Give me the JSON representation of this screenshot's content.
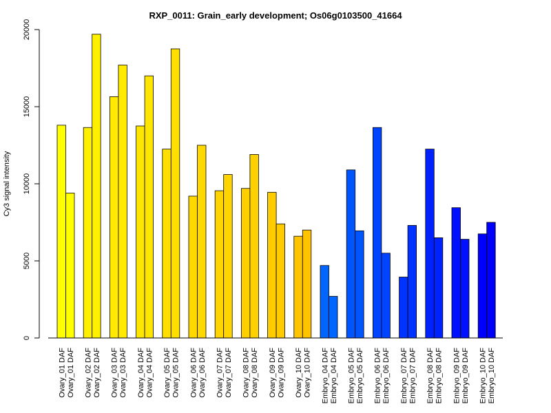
{
  "chart_data": {
    "type": "bar",
    "title": "RXP_0011: Grain_early development; Os06g0103500_41664",
    "xlabel": "",
    "ylabel": "Cy3 signal intensity",
    "ylim": [
      0,
      20000
    ],
    "yticks": [
      0,
      5000,
      10000,
      15000,
      20000
    ],
    "grid": false,
    "categories": [
      "Ovary_01 DAF",
      "Ovary_02 DAF",
      "Ovary_03 DAF",
      "Ovary_04 DAF",
      "Ovary_05 DAF",
      "Ovary_06 DAF",
      "Ovary_07 DAF",
      "Ovary_08 DAF",
      "Ovary_09 DAF",
      "Ovary_10 DAF",
      "Embryo_04 DAF",
      "Embryo_05 DAF",
      "Embryo_06 DAF",
      "Embryo_07 DAF",
      "Embryo_08 DAF",
      "Embryo_09 DAF",
      "Embryo_10 DAF"
    ],
    "series": [
      {
        "values": [
          13800,
          13650,
          15650,
          13750,
          12250,
          9200,
          9550,
          9700,
          9450,
          6600,
          4700,
          10900,
          13650,
          3950,
          12250,
          8450,
          6750
        ]
      },
      {
        "values": [
          9400,
          19700,
          17700,
          17000,
          18750,
          12500,
          10600,
          11900,
          7400,
          7000,
          2700,
          6950,
          5500,
          7300,
          6500,
          6400,
          7500
        ]
      }
    ],
    "colors": [
      "#ffff00",
      "#fff000",
      "#ffea00",
      "#ffe600",
      "#ffdf00",
      "#ffd800",
      "#ffd400",
      "#ffd000",
      "#ffcc00",
      "#ffc400",
      "#0066ff",
      "#0055ff",
      "#0044ff",
      "#0033ff",
      "#0022ff",
      "#0011ff",
      "#0000ff"
    ]
  }
}
